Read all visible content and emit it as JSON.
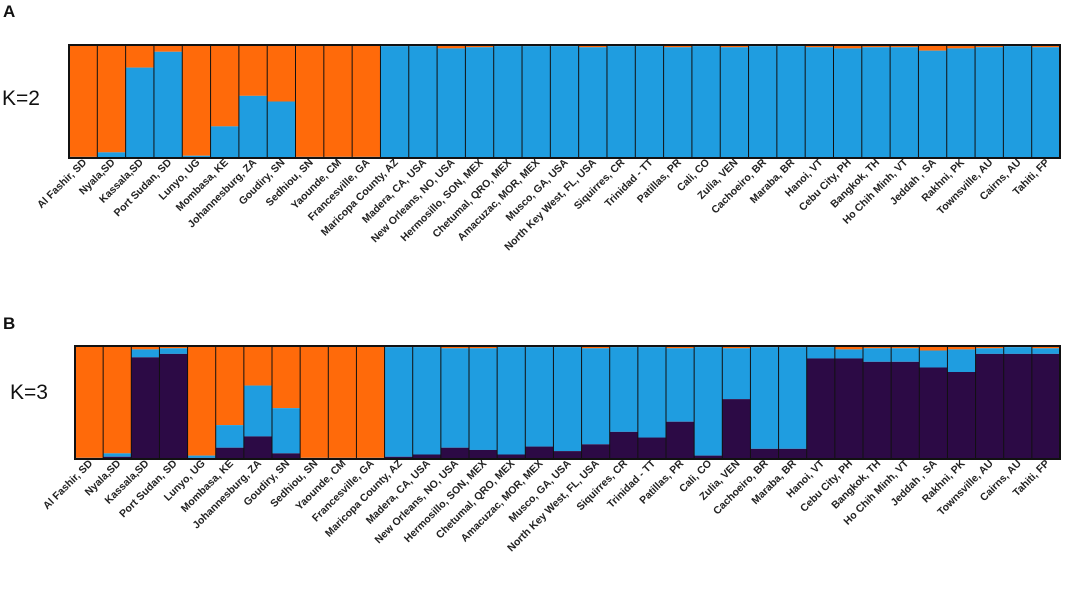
{
  "panels": [
    {
      "letter": "A",
      "k_label": "K=2"
    },
    {
      "letter": "B",
      "k_label": "K=3"
    }
  ],
  "colors": {
    "cluster_orange": "#ff6a0a",
    "cluster_blue": "#1f9de0",
    "cluster_purple": "#2c0a45",
    "border": "#111111"
  },
  "chart_data": [
    {
      "type": "bar",
      "stacked": true,
      "title": "K=2",
      "panel": "A",
      "ylim": [
        0,
        1
      ],
      "categories": [
        "Al Fashir, SD",
        "Nyala,SD",
        "Kassala,SD",
        "Port Sudan, SD",
        "Lunyo, UG",
        "Mombasa, KE",
        "Johannesburg, ZA",
        "Goudiry, SN",
        "Sedhiou, SN",
        "Yaounde, CM",
        "Francesville, GA",
        "Maricopa County, AZ",
        "Madera, CA, USA",
        "New Orleans, NO, USA",
        "Hermosillo, SON, MEX",
        "Chetumal, QRO, MEX",
        "Amacuzac, MOR, MEX",
        "Musco, GA, USA",
        "North Key West, FL, USA",
        "Siquirres, CR",
        "Trinidad - TT",
        "Patillas, PR",
        "Cali, CO",
        "Zulia, VEN",
        "Cachoeiro, BR",
        "Maraba, BR",
        "Hanoi, VT",
        "Cebu City, PH",
        "Bangkok, TH",
        "Ho Chih Minh, VT",
        "Jeddah , SA",
        "Rakhni, PK",
        "Townsville, AU",
        "Cairns, AU",
        "Tahiti, FP"
      ],
      "series": [
        {
          "name": "cluster_orange",
          "values": [
            0.99,
            0.95,
            0.2,
            0.06,
            0.98,
            0.72,
            0.45,
            0.5,
            0.99,
            0.99,
            0.99,
            0.01,
            0.01,
            0.03,
            0.02,
            0.01,
            0.01,
            0.01,
            0.02,
            0.01,
            0.01,
            0.02,
            0.01,
            0.02,
            0.01,
            0.01,
            0.02,
            0.03,
            0.02,
            0.02,
            0.05,
            0.03,
            0.02,
            0.01,
            0.02
          ]
        },
        {
          "name": "cluster_blue",
          "values": [
            0.01,
            0.05,
            0.8,
            0.94,
            0.02,
            0.28,
            0.55,
            0.5,
            0.01,
            0.01,
            0.01,
            0.99,
            0.99,
            0.97,
            0.98,
            0.99,
            0.99,
            0.99,
            0.98,
            0.99,
            0.99,
            0.98,
            0.99,
            0.98,
            0.99,
            0.99,
            0.98,
            0.97,
            0.98,
            0.98,
            0.95,
            0.97,
            0.98,
            0.99,
            0.98
          ]
        }
      ]
    },
    {
      "type": "bar",
      "stacked": true,
      "title": "K=3",
      "panel": "B",
      "ylim": [
        0,
        1
      ],
      "categories": [
        "Al Fashir, SD",
        "Nyala,SD",
        "Kassala,SD",
        "Port Sudan, SD",
        "Lunyo, UG",
        "Mombasa, KE",
        "Johannesburg, ZA",
        "Goudiry, SN",
        "Sedhiou, SN",
        "Yaounde, CM",
        "Francesville, GA",
        "Maricopa County, AZ",
        "Madera, CA, USA",
        "New Orleans, NO, USA",
        "Hermosillo, SON, MEX",
        "Chetumal, QRO, MEX",
        "Amacuzac, MOR, MEX",
        "Musco, GA, USA",
        "North Key West, FL, USA",
        "Siquirres, CR",
        "Trinidad - TT",
        "Patillas, PR",
        "Cali, CO",
        "Zulia, VEN",
        "Cachoeiro, BR",
        "Maraba, BR",
        "Hanoi, VT",
        "Cebu City, PH",
        "Bangkok, TH",
        "Ho Chih Minh, VT",
        "Jeddah , SA",
        "Rakhni, PK",
        "Townsville, AU",
        "Cairns, AU",
        "Tahiti, FP"
      ],
      "series": [
        {
          "name": "cluster_orange",
          "values": [
            0.99,
            0.95,
            0.03,
            0.02,
            0.97,
            0.7,
            0.35,
            0.55,
            0.99,
            0.99,
            0.99,
            0.01,
            0.01,
            0.02,
            0.02,
            0.01,
            0.01,
            0.01,
            0.02,
            0.01,
            0.01,
            0.02,
            0.01,
            0.02,
            0.01,
            0.01,
            0.01,
            0.03,
            0.02,
            0.02,
            0.04,
            0.03,
            0.02,
            0.01,
            0.02
          ]
        },
        {
          "name": "cluster_blue",
          "values": [
            0.005,
            0.03,
            0.07,
            0.05,
            0.02,
            0.2,
            0.45,
            0.4,
            0.005,
            0.005,
            0.005,
            0.97,
            0.95,
            0.88,
            0.9,
            0.95,
            0.88,
            0.92,
            0.85,
            0.75,
            0.8,
            0.65,
            0.96,
            0.45,
            0.9,
            0.9,
            0.1,
            0.08,
            0.12,
            0.12,
            0.15,
            0.2,
            0.05,
            0.06,
            0.05
          ]
        },
        {
          "name": "cluster_purple",
          "values": [
            0.005,
            0.02,
            0.9,
            0.93,
            0.01,
            0.1,
            0.2,
            0.05,
            0.005,
            0.005,
            0.005,
            0.02,
            0.04,
            0.1,
            0.08,
            0.04,
            0.11,
            0.07,
            0.13,
            0.24,
            0.19,
            0.33,
            0.03,
            0.53,
            0.09,
            0.09,
            0.89,
            0.89,
            0.86,
            0.86,
            0.81,
            0.77,
            0.93,
            0.93,
            0.93
          ]
        }
      ]
    }
  ]
}
